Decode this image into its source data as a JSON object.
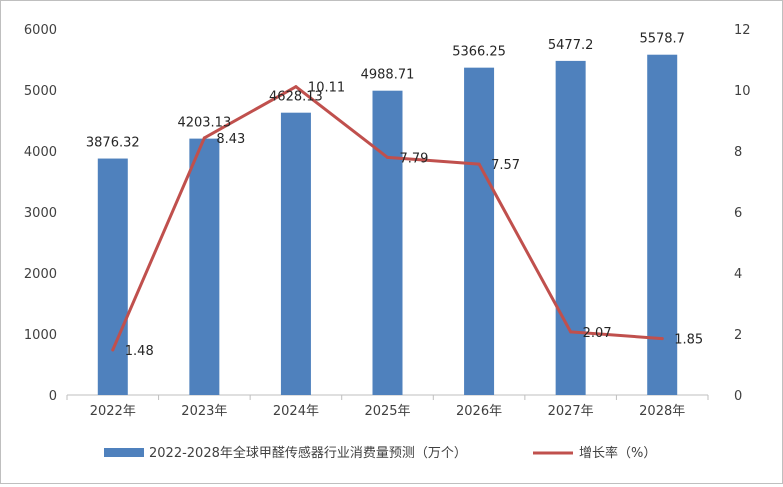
{
  "chart_data": {
    "type": "bar",
    "categories": [
      "2022年",
      "2023年",
      "2024年",
      "2025年",
      "2026年",
      "2027年",
      "2028年"
    ],
    "series": [
      {
        "name": "2022-2028年全球甲醛传感器行业消费量预测（万个）",
        "type": "bar",
        "axis": "left",
        "color": "#4f81bd",
        "values": [
          3876.32,
          4203.13,
          4628.13,
          4988.71,
          5366.25,
          5477.2,
          5578.7
        ],
        "labels": [
          "3876.32",
          "4203.13",
          "4628.13",
          "4988.71",
          "5366.25",
          "5477.2",
          "5578.7"
        ]
      },
      {
        "name": "增长率（%）",
        "type": "line",
        "axis": "right",
        "color": "#c0504d",
        "values": [
          1.48,
          8.43,
          10.11,
          7.79,
          7.57,
          2.07,
          1.85
        ],
        "labels": [
          "1.48",
          "8.43",
          "10.11",
          "7.79",
          "7.57",
          "2.07",
          "1.85"
        ]
      }
    ],
    "y_left": {
      "min": 0,
      "max": 6000,
      "ticks": [
        "0",
        "1000",
        "2000",
        "3000",
        "4000",
        "5000",
        "6000"
      ]
    },
    "y_right": {
      "min": 0,
      "max": 12,
      "ticks": [
        "0",
        "2",
        "4",
        "6",
        "8",
        "10",
        "12"
      ]
    },
    "grid": false,
    "legend_position": "bottom"
  }
}
